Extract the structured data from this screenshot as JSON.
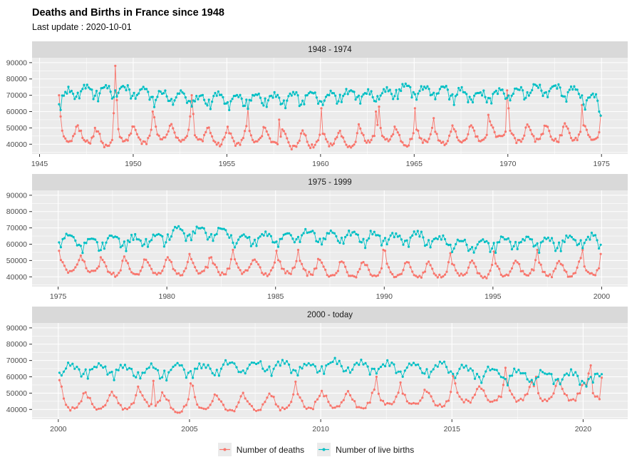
{
  "title": "Deaths and Births in France since 1948",
  "subtitle": "Last update : 2020-10-01",
  "legend": {
    "items": [
      {
        "label": "Number of deaths",
        "color": "#F8766D"
      },
      {
        "label": "Number of live births",
        "color": "#00BFC4"
      }
    ]
  },
  "chart_data": {
    "type": "line",
    "title": "Deaths and Births in France since 1948",
    "subtitle": "Last update : 2020-10-01",
    "xlabel": "",
    "ylabel": "",
    "grid": "on",
    "legend_position": "bottom",
    "series_names": [
      "Number of deaths",
      "Number of live births"
    ],
    "series_colors": [
      "#F8766D",
      "#00BFC4"
    ],
    "y_ticks": [
      40000,
      50000,
      60000,
      70000,
      80000,
      90000
    ],
    "ylim": [
      34000,
      93000
    ],
    "theme": {
      "panel_bg": "#EBEBEB",
      "strip_bg": "#D9D9D9",
      "grid_color": "#FFFFFF",
      "tick_text_color": "#4D4D4D",
      "tick_mark_color": "#333333"
    },
    "resolution": "monthly",
    "monthly_shape": {
      "births": [
        -1000,
        -4800,
        -500,
        500,
        3000,
        2000,
        3600,
        1800,
        2800,
        800,
        -3400,
        -2400
      ],
      "deaths": [
        6000,
        4000,
        2500,
        -500,
        -2200,
        -3800,
        -3300,
        -3700,
        -3500,
        -1200,
        300,
        4500
      ]
    },
    "jitter": {
      "births": 1500,
      "deaths": 1100
    },
    "panels": [
      {
        "label": "1948 - 1974",
        "start_year": 1946,
        "months_last_year": 12,
        "x_ticks": [
          1945,
          1950,
          1955,
          1960,
          1965,
          1970,
          1975
        ],
        "xlim": [
          1944.6,
          1976.4
        ],
        "births_monthly_mean_by_year": [
          70300,
          72500,
          72600,
          72700,
          71800,
          68800,
          68500,
          67000,
          67600,
          67200,
          67300,
          68000,
          67700,
          69100,
          68300,
          69800,
          69300,
          71500,
          73200,
          72200,
          72000,
          70100,
          69600,
          70200,
          70800,
          73400,
          73100,
          71400,
          66800
        ],
        "deaths_monthly_mean_by_year": [
          45400,
          44800,
          42800,
          46000,
          44500,
          47200,
          45400,
          46300,
          43200,
          43800,
          45500,
          44300,
          41700,
          42400,
          43400,
          41700,
          45300,
          46400,
          43300,
          45300,
          44000,
          45200,
          46100,
          47800,
          45200,
          46200,
          45800,
          46600,
          46100
        ],
        "deaths_overrides": [
          [
            1946,
            0,
            70000
          ],
          [
            1946,
            1,
            57000
          ],
          [
            1948,
            11,
            59000
          ],
          [
            1949,
            0,
            88000
          ],
          [
            1949,
            1,
            67000
          ],
          [
            1951,
            0,
            60000
          ],
          [
            1951,
            1,
            56500
          ],
          [
            1953,
            0,
            57000
          ],
          [
            1953,
            1,
            70000
          ],
          [
            1953,
            2,
            58500
          ],
          [
            1956,
            1,
            62000
          ],
          [
            1957,
            9,
            55000
          ],
          [
            1960,
            0,
            62000
          ],
          [
            1962,
            11,
            60000
          ],
          [
            1963,
            1,
            63000
          ],
          [
            1965,
            0,
            62000
          ],
          [
            1966,
            0,
            56000
          ],
          [
            1968,
            11,
            58000
          ],
          [
            1969,
            11,
            73000
          ],
          [
            1970,
            0,
            62000
          ],
          [
            1973,
            11,
            64000
          ],
          [
            1974,
            11,
            57500
          ]
        ],
        "births_overrides": [
          [
            1946,
            0,
            64500
          ],
          [
            1946,
            1,
            61000
          ],
          [
            1974,
            10,
            60000
          ],
          [
            1974,
            11,
            57500
          ]
        ]
      },
      {
        "label": "1975 - 1999",
        "start_year": 1975,
        "months_last_year": 12,
        "x_ticks": [
          1975,
          1980,
          1985,
          1990,
          1995,
          2000
        ],
        "xlim": [
          1973.8,
          2001.2
        ],
        "births_monthly_mean_by_year": [
          62100,
          60000,
          62100,
          61400,
          63100,
          66700,
          67100,
          66400,
          62400,
          63300,
          64000,
          64800,
          64000,
          64300,
          63800,
          63500,
          63300,
          62000,
          59300,
          59300,
          60800,
          61200,
          60600,
          61500,
          62100
        ],
        "deaths_monthly_mean_by_year": [
          46700,
          46400,
          44700,
          45600,
          45200,
          45600,
          46200,
          45300,
          46700,
          45200,
          46000,
          45600,
          44000,
          43800,
          44100,
          43900,
          43800,
          43500,
          44300,
          43300,
          44300,
          44700,
          44200,
          44500,
          44800
        ],
        "deaths_overrides": [
          [
            1975,
            0,
            56000
          ],
          [
            1976,
            0,
            53000
          ],
          [
            1978,
            0,
            52500
          ],
          [
            1980,
            0,
            52000
          ],
          [
            1981,
            0,
            54000
          ],
          [
            1983,
            0,
            56500
          ],
          [
            1985,
            0,
            56000
          ],
          [
            1986,
            0,
            56500
          ],
          [
            1989,
            11,
            56500
          ],
          [
            1990,
            0,
            56000
          ],
          [
            1993,
            0,
            54500
          ],
          [
            1995,
            0,
            55500
          ],
          [
            1997,
            0,
            56500
          ],
          [
            1999,
            1,
            56500
          ],
          [
            1999,
            11,
            54000
          ]
        ],
        "births_overrides": []
      },
      {
        "label": "2000 - today",
        "start_year": 2000,
        "months_last_year": 9,
        "x_ticks": [
          2000,
          2005,
          2010,
          2015,
          2020
        ],
        "xlim": [
          1999.0,
          2021.7
        ],
        "births_monthly_mean_by_year": [
          64600,
          64200,
          63500,
          63400,
          64000,
          64500,
          66400,
          65500,
          66300,
          66100,
          66800,
          66100,
          65800,
          65100,
          65100,
          63300,
          62100,
          60800,
          59900,
          59500,
          58500
        ],
        "deaths_monthly_mean_by_year": [
          44200,
          44300,
          44600,
          46000,
          42400,
          44000,
          43000,
          43400,
          44300,
          44800,
          45000,
          44600,
          46600,
          46500,
          45600,
          48500,
          48400,
          49500,
          49700,
          49900,
          51000
        ],
        "deaths_overrides": [
          [
            2000,
            0,
            58000
          ],
          [
            2000,
            1,
            54000
          ],
          [
            2003,
            0,
            54000
          ],
          [
            2003,
            7,
            57500
          ],
          [
            2005,
            0,
            56000
          ],
          [
            2005,
            1,
            54500
          ],
          [
            2009,
            0,
            57000
          ],
          [
            2012,
            1,
            60000
          ],
          [
            2013,
            0,
            56500
          ],
          [
            2015,
            0,
            60500
          ],
          [
            2015,
            1,
            56000
          ],
          [
            2016,
            11,
            55000
          ],
          [
            2017,
            0,
            65500
          ],
          [
            2017,
            1,
            56000
          ],
          [
            2018,
            0,
            57000
          ],
          [
            2018,
            2,
            60000
          ],
          [
            2019,
            0,
            58000
          ],
          [
            2019,
            1,
            56000
          ],
          [
            2020,
            0,
            56000
          ],
          [
            2020,
            2,
            62000
          ],
          [
            2020,
            3,
            67000
          ],
          [
            2020,
            4,
            50000
          ],
          [
            2020,
            8,
            59500
          ]
        ],
        "births_overrides": [
          [
            2020,
            4,
            56500
          ]
        ]
      }
    ]
  }
}
